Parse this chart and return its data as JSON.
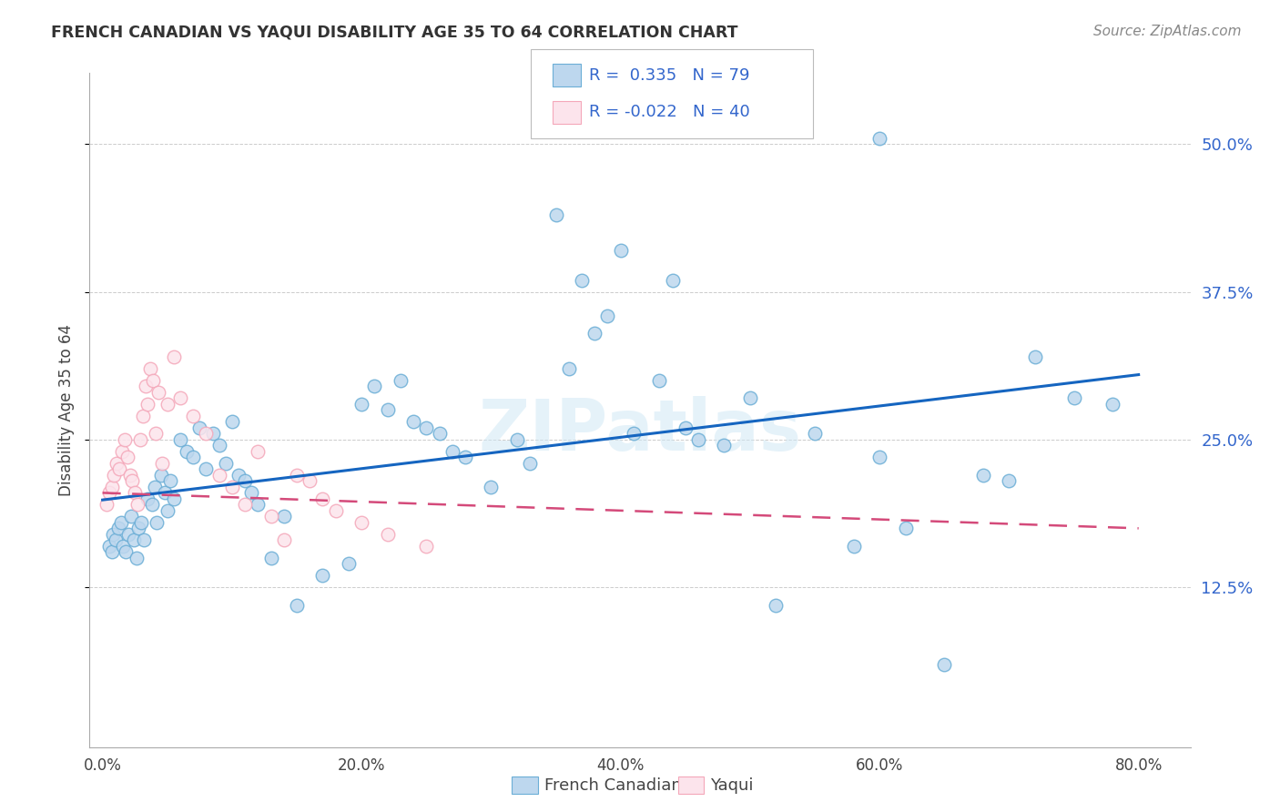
{
  "title": "FRENCH CANADIAN VS YAQUI DISABILITY AGE 35 TO 64 CORRELATION CHART",
  "source": "Source: ZipAtlas.com",
  "ylabel": "Disability Age 35 to 64",
  "legend_label1": "French Canadians",
  "legend_label2": "Yaqui",
  "r1": "0.335",
  "n1": "79",
  "r2": "-0.022",
  "n2": "40",
  "blue_color": "#6baed6",
  "blue_fill": "#bdd7ee",
  "pink_color": "#f4a7b9",
  "pink_fill": "#fce4ec",
  "line_blue": "#1565c0",
  "line_pink": "#d44a7a",
  "text_color": "#3366cc",
  "title_color": "#333333",
  "background_color": "#ffffff",
  "grid_color": "#aaaaaa",
  "ytick_vals": [
    12.5,
    25.0,
    37.5,
    50.0
  ],
  "xtick_vals": [
    0.0,
    20.0,
    40.0,
    60.0,
    80.0
  ],
  "xlim": [
    -1,
    84
  ],
  "ylim": [
    -1,
    56
  ],
  "blue_x": [
    0.5,
    0.7,
    0.8,
    1.0,
    1.2,
    1.4,
    1.6,
    1.8,
    2.0,
    2.2,
    2.4,
    2.6,
    2.8,
    3.0,
    3.2,
    3.5,
    3.8,
    4.0,
    4.2,
    4.5,
    4.8,
    5.0,
    5.2,
    5.5,
    6.0,
    6.5,
    7.0,
    7.5,
    8.0,
    8.5,
    9.0,
    9.5,
    10.0,
    10.5,
    11.0,
    11.5,
    12.0,
    13.0,
    14.0,
    15.0,
    17.0,
    19.0,
    20.0,
    21.0,
    22.0,
    23.0,
    24.0,
    25.0,
    26.0,
    27.0,
    28.0,
    30.0,
    32.0,
    33.0,
    35.0,
    36.0,
    37.0,
    38.0,
    39.0,
    40.0,
    41.0,
    43.0,
    44.0,
    45.0,
    46.0,
    48.0,
    50.0,
    52.0,
    55.0,
    58.0,
    60.0,
    62.0,
    65.0,
    68.0,
    70.0,
    72.0,
    75.0,
    78.0,
    60.0
  ],
  "blue_y": [
    16.0,
    15.5,
    17.0,
    16.5,
    17.5,
    18.0,
    16.0,
    15.5,
    17.0,
    18.5,
    16.5,
    15.0,
    17.5,
    18.0,
    16.5,
    20.0,
    19.5,
    21.0,
    18.0,
    22.0,
    20.5,
    19.0,
    21.5,
    20.0,
    25.0,
    24.0,
    23.5,
    26.0,
    22.5,
    25.5,
    24.5,
    23.0,
    26.5,
    22.0,
    21.5,
    20.5,
    19.5,
    15.0,
    18.5,
    11.0,
    13.5,
    14.5,
    28.0,
    29.5,
    27.5,
    30.0,
    26.5,
    26.0,
    25.5,
    24.0,
    23.5,
    21.0,
    25.0,
    23.0,
    44.0,
    31.0,
    38.5,
    34.0,
    35.5,
    41.0,
    25.5,
    30.0,
    38.5,
    26.0,
    25.0,
    24.5,
    28.5,
    11.0,
    25.5,
    16.0,
    23.5,
    17.5,
    6.0,
    22.0,
    21.5,
    32.0,
    28.5,
    28.0,
    50.5
  ],
  "pink_x": [
    0.3,
    0.5,
    0.7,
    0.9,
    1.1,
    1.3,
    1.5,
    1.7,
    1.9,
    2.1,
    2.3,
    2.5,
    2.7,
    2.9,
    3.1,
    3.3,
    3.5,
    3.7,
    3.9,
    4.1,
    4.3,
    4.6,
    5.0,
    5.5,
    6.0,
    7.0,
    8.0,
    9.0,
    10.0,
    11.0,
    12.0,
    13.0,
    14.0,
    15.0,
    16.0,
    17.0,
    18.0,
    20.0,
    22.0,
    25.0
  ],
  "pink_y": [
    19.5,
    20.5,
    21.0,
    22.0,
    23.0,
    22.5,
    24.0,
    25.0,
    23.5,
    22.0,
    21.5,
    20.5,
    19.5,
    25.0,
    27.0,
    29.5,
    28.0,
    31.0,
    30.0,
    25.5,
    29.0,
    23.0,
    28.0,
    32.0,
    28.5,
    27.0,
    25.5,
    22.0,
    21.0,
    19.5,
    24.0,
    18.5,
    16.5,
    22.0,
    21.5,
    20.0,
    19.0,
    18.0,
    17.0,
    16.0
  ],
  "watermark_text": "ZIPatlas",
  "watermark_color": "#d0e8f5"
}
